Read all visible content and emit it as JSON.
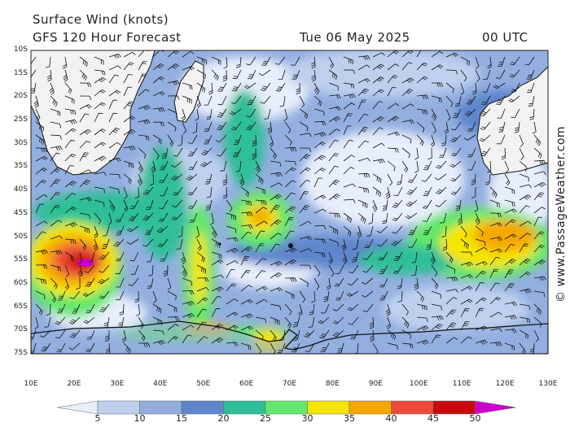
{
  "header": {
    "title": "Surface Wind (knots)",
    "subtitle": "GFS 120 Hour Forecast",
    "date": "Tue 06 May 2025",
    "time": "00 UTC"
  },
  "credit": "© www.PassageWeather.com",
  "axes": {
    "lat_labels": [
      "10S",
      "15S",
      "20S",
      "25S",
      "30S",
      "35S",
      "40S",
      "45S",
      "50S",
      "55S",
      "60S",
      "65S",
      "70S",
      "75S"
    ],
    "lon_labels": [
      "10E",
      "20E",
      "30E",
      "40E",
      "50E",
      "60E",
      "70E",
      "80E",
      "90E",
      "100E",
      "110E",
      "120E",
      "130E"
    ]
  },
  "legend": {
    "labels": [
      "5",
      "10",
      "15",
      "20",
      "25",
      "30",
      "35",
      "40",
      "45",
      "50"
    ],
    "colors": [
      "#e8eefb",
      "#bfd0ef",
      "#93afe0",
      "#5f86cc",
      "#2fbf98",
      "#63e86b",
      "#f5e500",
      "#f5a800",
      "#ee4a3c",
      "#c80a0a",
      "#cc00cc"
    ]
  },
  "colors": {
    "land": "#f2f2f2",
    "coast": "#111111",
    "barb": "#111111"
  }
}
